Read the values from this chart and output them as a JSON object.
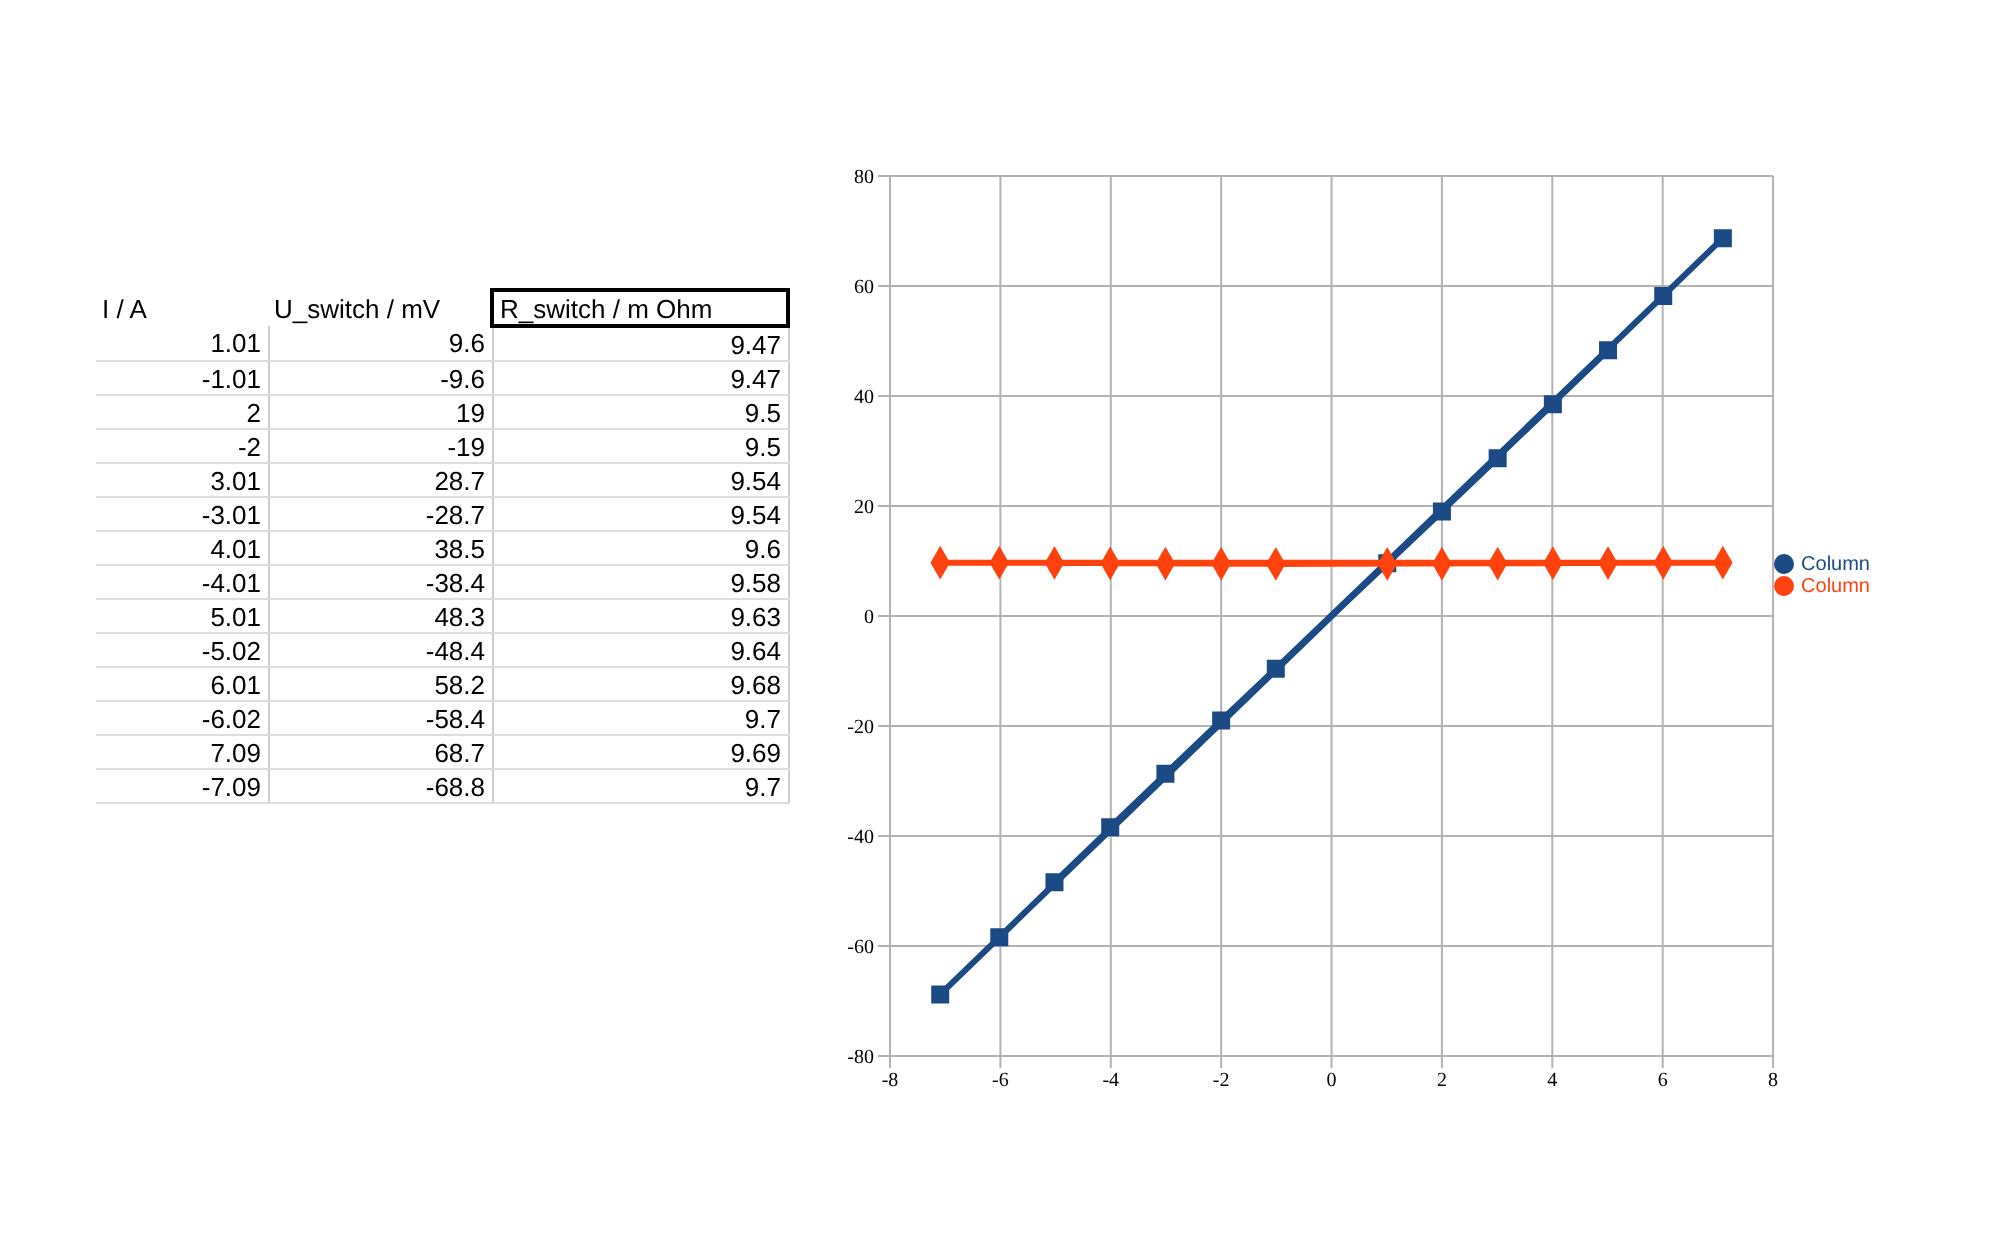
{
  "chart_data": [
    {
      "type": "other",
      "categories": [
        "I / A",
        "U_switch / mV",
        "R_switch / m Ohm"
      ],
      "cell_labels": [
        [
          "1.01",
          "9.6",
          "9.47"
        ],
        [
          "-1.01",
          "-9.6",
          "9.47"
        ],
        [
          "2",
          "19",
          "9.5"
        ],
        [
          "-2",
          "-19",
          "9.5"
        ],
        [
          "3.01",
          "28.7",
          "9.54"
        ],
        [
          "-3.01",
          "-28.7",
          "9.54"
        ],
        [
          "4.01",
          "38.5",
          "9.6"
        ],
        [
          "-4.01",
          "-38.4",
          "9.58"
        ],
        [
          "5.01",
          "48.3",
          "9.63"
        ],
        [
          "-5.02",
          "-48.4",
          "9.64"
        ],
        [
          "6.01",
          "58.2",
          "9.68"
        ],
        [
          "-6.02",
          "-58.4",
          "9.7"
        ],
        [
          "7.09",
          "68.7",
          "9.69"
        ],
        [
          "-7.09",
          "-68.8",
          "9.7"
        ]
      ]
    },
    {
      "type": "line",
      "x": [
        1.01,
        -1.01,
        2,
        -2,
        3.01,
        -3.01,
        4.01,
        -4.01,
        5.01,
        -5.02,
        6.01,
        -6.02,
        7.09,
        -7.09
      ],
      "series": [
        {
          "name": "Column",
          "color": "#1c4a85",
          "marker": "square",
          "values": [
            9.6,
            -9.6,
            19,
            -19,
            28.7,
            -28.7,
            38.5,
            -38.4,
            48.3,
            -48.4,
            58.2,
            -58.4,
            68.7,
            -68.8
          ]
        },
        {
          "name": "Column",
          "color": "#ff420e",
          "marker": "diamond",
          "values": [
            9.47,
            9.47,
            9.5,
            9.5,
            9.54,
            9.54,
            9.6,
            9.58,
            9.63,
            9.64,
            9.68,
            9.7,
            9.69,
            9.7
          ]
        }
      ],
      "xlim": [
        -8,
        8
      ],
      "xticks": [
        -8,
        -6,
        -4,
        -2,
        0,
        2,
        4,
        6,
        8
      ],
      "ylim": [
        -80,
        80
      ],
      "yticks": [
        -80,
        -60,
        -40,
        -20,
        0,
        20,
        40,
        60,
        80
      ],
      "grid": true,
      "legend": "right"
    }
  ]
}
